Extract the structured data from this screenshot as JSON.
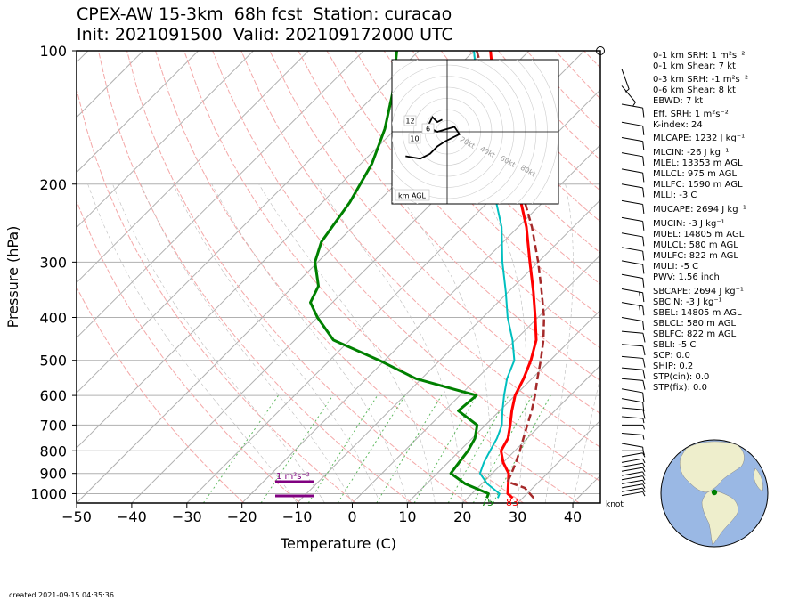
{
  "title": {
    "line1": "CPEX-AW 15-3km  68h fcst  Station: curacao",
    "line2": "Init: 2021091500  Valid: 202109172000 UTC"
  },
  "footer": "created 2021-09-15 04:35:36",
  "indices": [
    "0-1 km SRH: 1 m²s⁻²",
    "0-1 km Shear: 7 kt",
    "0-3 km SRH: -1 m²s⁻²",
    "0-6 km Shear: 8 kt",
    "EBWD: 7 kt",
    "Eff. SRH: 1 m²s⁻²",
    "K-index: 24",
    "MLCAPE: 1232 J kg⁻¹",
    "MLCIN: -26 J kg⁻¹",
    "MLEL: 13353 m AGL",
    "MLLCL: 975 m AGL",
    "MLLFC: 1590 m AGL",
    "MLLI: -3 C",
    "MUCAPE: 2694 J kg⁻¹",
    "MUCIN: -3 J kg⁻¹",
    "MUEL: 14805 m AGL",
    "MULCL: 580 m AGL",
    "MULFC: 822 m AGL",
    "MULI: -5 C",
    "PWV: 1.56 inch",
    "SBCAPE: 2694 J kg⁻¹",
    "SBCIN: -3 J kg⁻¹",
    "SBEL: 14805 m AGL",
    "SBLCL: 580 m AGL",
    "SBLFC: 822 m AGL",
    "SBLI: -5 C",
    "SCP: 0.0",
    "SHIP: 0.2",
    "STP(cin): 0.0",
    "STP(fix): 0.0"
  ],
  "hodograph": {
    "label": "km AGL",
    "ring_labels": [
      "20kt",
      "40kt",
      "60kt",
      "80kt"
    ],
    "height_labels": [
      "12",
      "6",
      "10"
    ]
  },
  "srh_bar_label": "1 m²s⁻²",
  "wind_units_label": "knot",
  "surface_labels": {
    "dewpoint": "75",
    "temperature": "83"
  },
  "colors": {
    "temperature": "#ff0000",
    "dewpoint": "#008000",
    "virtual_temperature": "#00bfbf",
    "parcel": "#a52a2a",
    "dry_adiabat": "#f4a8a8",
    "isotherm": "#b0b0b0",
    "mixing_ratio": "#5cb85c",
    "srh_bar": "#800080"
  },
  "chart_data": {
    "type": "line",
    "xlabel": "Temperature (C)",
    "ylabel": "Pressure (hPa)",
    "xlim": [
      -50,
      45
    ],
    "ylim": [
      1050,
      100
    ],
    "y_scale": "log",
    "x_ticks": [
      "−50",
      "−40",
      "−30",
      "−20",
      "−10",
      "0",
      "10",
      "20",
      "30",
      "40"
    ],
    "y_ticks": [
      "100",
      "200",
      "300",
      "400",
      "500",
      "600",
      "700",
      "800",
      "900",
      "1000"
    ],
    "grid": true,
    "series": [
      {
        "role": "temperature",
        "points": [
          [
            1023,
            28.2
          ],
          [
            1000,
            26.5
          ],
          [
            950,
            24.8
          ],
          [
            900,
            23.0
          ],
          [
            850,
            20.0
          ],
          [
            800,
            17.5
          ],
          [
            750,
            16.5
          ],
          [
            700,
            14.5
          ],
          [
            650,
            12.2
          ],
          [
            600,
            10.0
          ],
          [
            550,
            8.5
          ],
          [
            500,
            6.5
          ],
          [
            450,
            3.8
          ],
          [
            400,
            -0.5
          ],
          [
            350,
            -5.5
          ],
          [
            300,
            -11.5
          ],
          [
            250,
            -18.5
          ],
          [
            200,
            -28.0
          ],
          [
            150,
            -40.5
          ],
          [
            125,
            -48.5
          ],
          [
            100,
            -57.0
          ]
        ]
      },
      {
        "role": "dewpoint",
        "points": [
          [
            1023,
            23.5
          ],
          [
            1000,
            23.0
          ],
          [
            950,
            17.0
          ],
          [
            900,
            12.5
          ],
          [
            850,
            12.0
          ],
          [
            800,
            11.5
          ],
          [
            750,
            10.5
          ],
          [
            700,
            8.5
          ],
          [
            650,
            2.5
          ],
          [
            600,
            3.0
          ],
          [
            550,
            -11.0
          ],
          [
            500,
            -21.0
          ],
          [
            450,
            -33.0
          ],
          [
            400,
            -40.0
          ],
          [
            370,
            -44.0
          ],
          [
            340,
            -45.5
          ],
          [
            300,
            -50.5
          ],
          [
            270,
            -53.0
          ],
          [
            220,
            -55.0
          ],
          [
            180,
            -58.0
          ],
          [
            150,
            -62.0
          ],
          [
            125,
            -67.0
          ],
          [
            100,
            -74.0
          ]
        ]
      },
      {
        "role": "virtual_temperature",
        "points": [
          [
            1023,
            25.5
          ],
          [
            1000,
            25.0
          ],
          [
            950,
            21.0
          ],
          [
            900,
            17.8
          ],
          [
            850,
            16.5
          ],
          [
            800,
            15.5
          ],
          [
            750,
            14.5
          ],
          [
            700,
            13.0
          ],
          [
            650,
            10.5
          ],
          [
            600,
            8.0
          ],
          [
            550,
            5.5
          ],
          [
            500,
            3.5
          ],
          [
            450,
            -0.5
          ],
          [
            400,
            -5.5
          ],
          [
            350,
            -10.5
          ],
          [
            300,
            -16.5
          ],
          [
            250,
            -23.0
          ],
          [
            200,
            -32.5
          ],
          [
            150,
            -44.5
          ],
          [
            125,
            -51.5
          ],
          [
            100,
            -60.0
          ]
        ]
      },
      {
        "role": "parcel",
        "points": [
          [
            1023,
            32.0
          ],
          [
            970,
            28.5
          ],
          [
            940,
            24.3
          ],
          [
            900,
            23.5
          ],
          [
            850,
            22.3
          ],
          [
            800,
            20.9
          ],
          [
            750,
            19.3
          ],
          [
            700,
            17.6
          ],
          [
            650,
            15.8
          ],
          [
            600,
            13.6
          ],
          [
            550,
            11.0
          ],
          [
            500,
            8.3
          ],
          [
            450,
            5.1
          ],
          [
            400,
            1.1
          ],
          [
            350,
            -4.0
          ],
          [
            300,
            -10.0
          ],
          [
            250,
            -17.5
          ],
          [
            200,
            -27.5
          ],
          [
            150,
            -41.0
          ],
          [
            125,
            -49.5
          ],
          [
            100,
            -59.5
          ]
        ]
      }
    ],
    "hodograph_points": [
      [
        -2,
        5
      ],
      [
        -4,
        4
      ],
      [
        -6,
        6
      ],
      [
        -8,
        2
      ],
      [
        -4,
        0
      ],
      [
        3,
        2
      ],
      [
        5,
        -1
      ],
      [
        -1,
        -4
      ],
      [
        -4,
        -6
      ],
      [
        -7,
        -9
      ],
      [
        -11,
        -11
      ],
      [
        -17,
        -10
      ]
    ],
    "wind_barbs": [
      {
        "p": 1010,
        "spd": 7,
        "dir": 80
      },
      {
        "p": 990,
        "spd": 7,
        "dir": 80
      },
      {
        "p": 970,
        "spd": 6,
        "dir": 80
      },
      {
        "p": 950,
        "spd": 8,
        "dir": 80
      },
      {
        "p": 930,
        "spd": 8,
        "dir": 80
      },
      {
        "p": 910,
        "spd": 9,
        "dir": 80
      },
      {
        "p": 890,
        "spd": 8,
        "dir": 80
      },
      {
        "p": 870,
        "spd": 9,
        "dir": 80
      },
      {
        "p": 850,
        "spd": 8,
        "dir": 80
      },
      {
        "p": 825,
        "spd": 8,
        "dir": 80
      },
      {
        "p": 800,
        "spd": 7,
        "dir": 90
      },
      {
        "p": 770,
        "spd": 6,
        "dir": 100
      },
      {
        "p": 730,
        "spd": 8,
        "dir": 95
      },
      {
        "p": 700,
        "spd": 7,
        "dir": 90
      },
      {
        "p": 670,
        "spd": 8,
        "dir": 95
      },
      {
        "p": 640,
        "spd": 10,
        "dir": 95
      },
      {
        "p": 610,
        "spd": 12,
        "dir": 100
      },
      {
        "p": 580,
        "spd": 12,
        "dir": 100
      },
      {
        "p": 550,
        "spd": 12,
        "dir": 95
      },
      {
        "p": 520,
        "spd": 12,
        "dir": 95
      },
      {
        "p": 490,
        "spd": 12,
        "dir": 95
      },
      {
        "p": 460,
        "spd": 12,
        "dir": 95
      },
      {
        "p": 430,
        "spd": 12,
        "dir": 95
      },
      {
        "p": 400,
        "spd": 14,
        "dir": 100
      },
      {
        "p": 370,
        "spd": 15,
        "dir": 100
      },
      {
        "p": 345,
        "spd": 15,
        "dir": 100
      },
      {
        "p": 320,
        "spd": 14,
        "dir": 100
      },
      {
        "p": 298,
        "spd": 14,
        "dir": 100
      },
      {
        "p": 278,
        "spd": 12,
        "dir": 100
      },
      {
        "p": 258,
        "spd": 12,
        "dir": 100
      },
      {
        "p": 238,
        "spd": 12,
        "dir": 100
      },
      {
        "p": 218,
        "spd": 12,
        "dir": 100
      },
      {
        "p": 200,
        "spd": 12,
        "dir": 100
      },
      {
        "p": 185,
        "spd": 11,
        "dir": 100
      },
      {
        "p": 170,
        "spd": 10,
        "dir": 100
      },
      {
        "p": 157,
        "spd": 10,
        "dir": 100
      },
      {
        "p": 145,
        "spd": 12,
        "dir": 100
      },
      {
        "p": 132,
        "spd": 14,
        "dir": 100
      },
      {
        "p": 120,
        "spd": 8,
        "dir": 140
      },
      {
        "p": 110,
        "spd": 7,
        "dir": 160
      },
      {
        "p": 102,
        "spd": 0,
        "dir": 0
      }
    ]
  }
}
